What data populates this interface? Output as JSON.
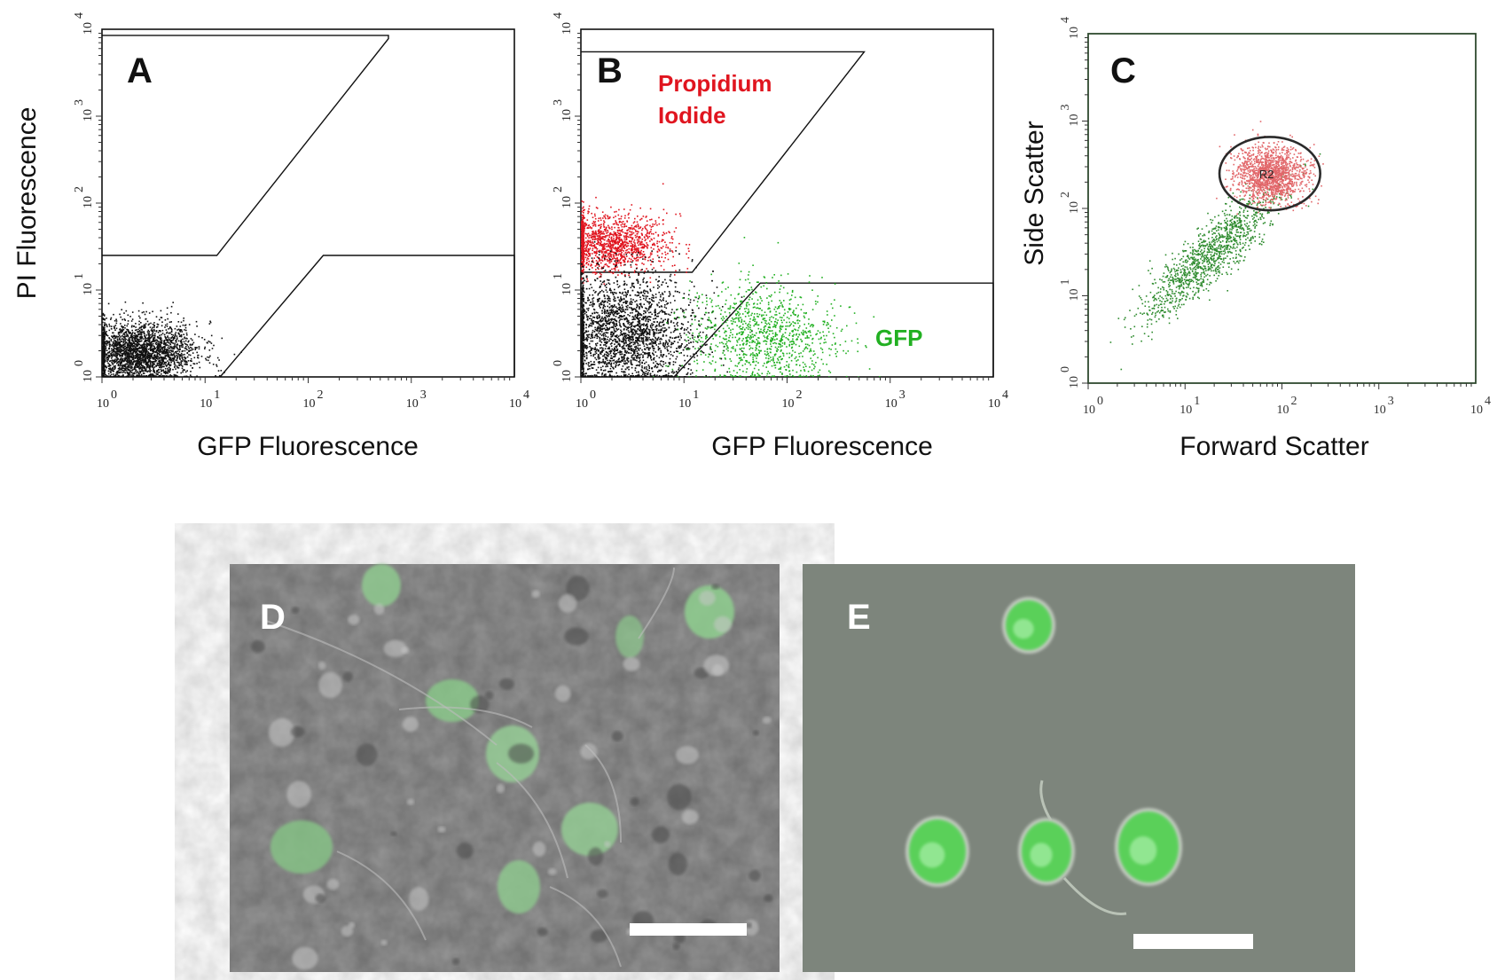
{
  "panels": {
    "A": {
      "letter": "A",
      "xlabel": "GFP Fluorescence",
      "ylabel": "PI Fluorescence"
    },
    "B": {
      "letter": "B",
      "xlabel": "GFP Fluorescence",
      "annot_pi_1": "Propidium",
      "annot_pi_2": "Iodide",
      "annot_gfp": "GFP"
    },
    "C": {
      "letter": "C",
      "xlabel": "Forward Scatter",
      "ylabel": "Side Scatter",
      "gate_label": "R2"
    },
    "D": {
      "letter": "D"
    },
    "E": {
      "letter": "E"
    }
  },
  "colors": {
    "pi": "#e0151f",
    "gfp": "#22b022",
    "gate_r2_events": "#e2676a",
    "side_events": "#2e8b2e",
    "dark_events": "#111111"
  },
  "chart_data": [
    {
      "id": "A",
      "type": "scatter",
      "x_scale": "log",
      "y_scale": "log",
      "xlim": [
        1,
        10000
      ],
      "ylim": [
        1,
        10000
      ],
      "xlabel": "GFP Fluorescence",
      "ylabel": "PI Fluorescence",
      "x_ticks": [
        "10^0",
        "10^1",
        "10^2",
        "10^3",
        "10^4"
      ],
      "y_ticks": [
        "10^0",
        "10^1",
        "10^2",
        "10^3",
        "10^4"
      ],
      "series": [
        {
          "color": "#111111",
          "cluster": {
            "x_center": 2.2,
            "y_center": 1.9,
            "x_spread_decades": 0.28,
            "y_spread_decades": 0.18,
            "n": 2600
          }
        }
      ],
      "gates": [
        {
          "kind": "polygon",
          "points": [
            [
              1,
              25
            ],
            [
              13,
              25
            ],
            [
              600,
              7800
            ],
            [
              600,
              8500
            ],
            [
              1,
              8500
            ]
          ]
        },
        {
          "kind": "polygon",
          "points": [
            [
              14,
              1
            ],
            [
              140,
              25
            ],
            [
              10000,
              25
            ],
            [
              10000,
              1
            ]
          ]
        }
      ]
    },
    {
      "id": "B",
      "type": "scatter",
      "x_scale": "log",
      "y_scale": "log",
      "xlim": [
        1,
        10000
      ],
      "ylim": [
        1,
        10000
      ],
      "xlabel": "GFP Fluorescence",
      "x_ticks": [
        "10^0",
        "10^1",
        "10^2",
        "10^3",
        "10^4"
      ],
      "y_ticks": [
        "10^0",
        "10^1",
        "10^2",
        "10^3",
        "10^4"
      ],
      "annotations": [
        "Propidium Iodide",
        "GFP"
      ],
      "series": [
        {
          "name": "Propidium Iodide",
          "color": "#e0151f",
          "cluster": {
            "x_center": 1.8,
            "y_center": 35,
            "x_spread_decades": 0.28,
            "y_spread_decades": 0.16,
            "n": 1400
          }
        },
        {
          "color": "#111111",
          "cluster": {
            "x_center": 2.5,
            "y_center": 3.2,
            "x_spread_decades": 0.35,
            "y_spread_decades": 0.35,
            "n": 3000
          }
        },
        {
          "name": "GFP",
          "color": "#22b022",
          "cluster": {
            "x_center": 60,
            "y_center": 3.0,
            "x_spread_decades": 0.35,
            "y_spread_decades": 0.3,
            "n": 1100
          }
        }
      ],
      "gates": [
        {
          "kind": "polygon",
          "points": [
            [
              1,
              16
            ],
            [
              12,
              16
            ],
            [
              560,
              5500
            ],
            [
              560,
              5500
            ],
            [
              1,
              5500
            ]
          ]
        },
        {
          "kind": "polygon",
          "points": [
            [
              8,
              1
            ],
            [
              55,
              12
            ],
            [
              10000,
              12
            ],
            [
              10000,
              1
            ]
          ]
        }
      ]
    },
    {
      "id": "C",
      "type": "scatter",
      "x_scale": "log",
      "y_scale": "log",
      "xlim": [
        1,
        10000
      ],
      "ylim": [
        1,
        10000
      ],
      "xlabel": "Forward Scatter",
      "ylabel": "Side Scatter",
      "x_ticks": [
        "10^0",
        "10^1",
        "10^2",
        "10^3",
        "10^4"
      ],
      "y_ticks": [
        "10^0",
        "10^1",
        "10^2",
        "10^3",
        "10^4"
      ],
      "series": [
        {
          "color": "#2e8b2e",
          "cluster": {
            "x_center": 18,
            "y_center": 30,
            "x_spread_decades": 0.3,
            "y_spread_decades": 0.3,
            "n": 1200
          }
        },
        {
          "name": "R2",
          "color": "#e2676a",
          "cluster": {
            "x_center": 75,
            "y_center": 250,
            "x_spread_decades": 0.18,
            "y_spread_decades": 0.16,
            "n": 1500
          }
        }
      ],
      "gates": [
        {
          "kind": "ellipse",
          "label": "R2",
          "center": [
            75,
            250
          ],
          "rx_decades": 0.52,
          "ry_decades": 0.42
        }
      ]
    }
  ]
}
